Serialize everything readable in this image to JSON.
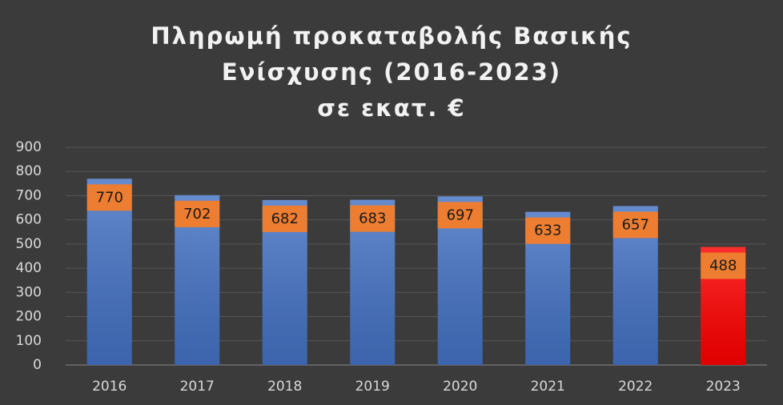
{
  "chart_data": {
    "type": "bar",
    "title": [
      "Πληρωμή προκαταβολής Βασικής",
      "Ενίσχυσης (2016-2023)",
      "σε εκατ. €"
    ],
    "categories": [
      "2016",
      "2017",
      "2018",
      "2019",
      "2020",
      "2021",
      "2022",
      "2023"
    ],
    "values": [
      770,
      702,
      682,
      683,
      697,
      633,
      657,
      488
    ],
    "colors": [
      "#4472c4",
      "#4472c4",
      "#4472c4",
      "#4472c4",
      "#4472c4",
      "#4472c4",
      "#4472c4",
      "#ff0000"
    ],
    "label_color": "#ed7d31",
    "ylim": [
      0,
      900
    ],
    "yticks": [
      0,
      100,
      200,
      300,
      400,
      500,
      600,
      700,
      800,
      900
    ],
    "grid": true
  }
}
